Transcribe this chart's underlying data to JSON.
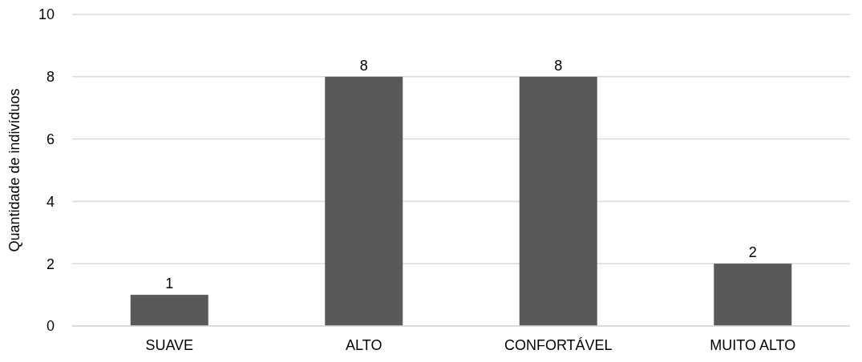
{
  "chart_data": {
    "type": "bar",
    "ylabel": "Quantidade de indivíduos",
    "categories": [
      "SUAVE",
      "ALTO",
      "CONFORTÁVEL",
      "MUITO ALTO"
    ],
    "values": [
      1,
      8,
      8,
      2
    ],
    "color": "#595959",
    "ylim": [
      0,
      10
    ],
    "yticks": [
      0,
      2,
      4,
      6,
      8,
      10
    ],
    "grid": "y",
    "data_labels": true
  }
}
